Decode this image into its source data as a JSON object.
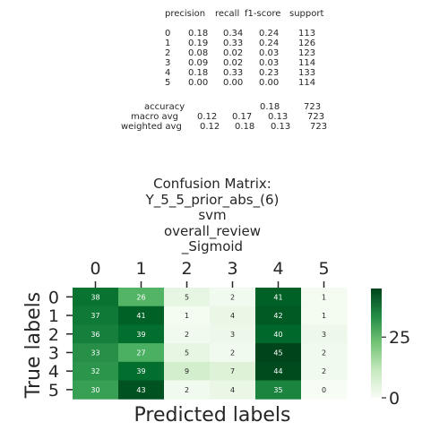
{
  "report": {
    "header": [
      "precision",
      "recall",
      "f1-score",
      "support"
    ],
    "rows": [
      {
        "label": "0",
        "precision": "0.18",
        "recall": "0.34",
        "f1": "0.24",
        "support": "113"
      },
      {
        "label": "1",
        "precision": "0.19",
        "recall": "0.33",
        "f1": "0.24",
        "support": "126"
      },
      {
        "label": "2",
        "precision": "0.08",
        "recall": "0.02",
        "f1": "0.03",
        "support": "123"
      },
      {
        "label": "3",
        "precision": "0.09",
        "recall": "0.02",
        "f1": "0.03",
        "support": "114"
      },
      {
        "label": "4",
        "precision": "0.18",
        "recall": "0.33",
        "f1": "0.23",
        "support": "133"
      },
      {
        "label": "5",
        "precision": "0.00",
        "recall": "0.00",
        "f1": "0.00",
        "support": "114"
      }
    ],
    "accuracy": {
      "label": "accuracy",
      "f1": "0.18",
      "support": "723"
    },
    "macro": {
      "label": "macro avg",
      "precision": "0.12",
      "recall": "0.17",
      "f1": "0.13",
      "support": "723"
    },
    "weighted": {
      "label": "weighted avg",
      "precision": "0.12",
      "recall": "0.18",
      "f1": "0.13",
      "support": "723"
    }
  },
  "chart_data": {
    "type": "heatmap",
    "title_lines": [
      "Confusion Matrix:",
      "Y_5_5_prior_abs_(6)",
      "svm",
      "overall_review",
      "_Sigmoid"
    ],
    "xlabel": "Predicted labels",
    "ylabel": "True labels",
    "x_categories": [
      "0",
      "1",
      "2",
      "3",
      "4",
      "5"
    ],
    "y_categories": [
      "0",
      "1",
      "2",
      "3",
      "4",
      "5"
    ],
    "values": [
      [
        38,
        26,
        5,
        2,
        41,
        1
      ],
      [
        37,
        41,
        1,
        4,
        42,
        1
      ],
      [
        36,
        39,
        2,
        3,
        40,
        3
      ],
      [
        33,
        27,
        5,
        2,
        45,
        2
      ],
      [
        32,
        39,
        9,
        7,
        44,
        2
      ],
      [
        30,
        43,
        2,
        4,
        35,
        0
      ]
    ],
    "colormap": "Greens",
    "color_range": [
      0,
      45
    ],
    "colorbar_ticks": [
      0,
      25
    ]
  }
}
